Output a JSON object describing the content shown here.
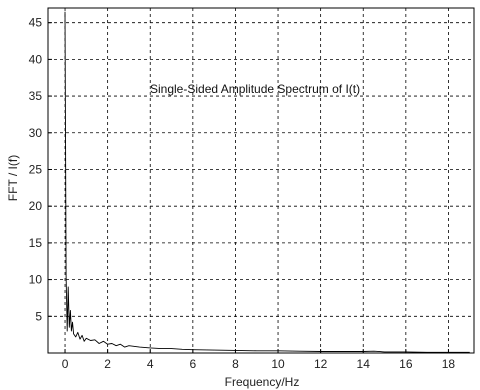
{
  "chart_data": {
    "type": "line",
    "title": "",
    "annotation": "Single-Sided Amplitude Spectrum of I(t)",
    "xlabel": "Frequency/Hz",
    "ylabel": "FFT / I(f)",
    "xlim": [
      -0.8,
      19.2
    ],
    "ylim": [
      0,
      47
    ],
    "xticks": [
      0,
      2,
      4,
      6,
      8,
      10,
      12,
      14,
      16,
      18
    ],
    "yticks": [
      5,
      10,
      15,
      20,
      25,
      30,
      35,
      40,
      45
    ],
    "grid": true,
    "series": [
      {
        "color": "#000000",
        "x": [
          0,
          0.05,
          0.1,
          0.15,
          0.2,
          0.25,
          0.3,
          0.35,
          0.4,
          0.5,
          0.6,
          0.7,
          0.8,
          0.9,
          1.0,
          1.2,
          1.4,
          1.6,
          1.8,
          2.0,
          2.2,
          2.4,
          2.6,
          2.8,
          3.0,
          3.5,
          4.0,
          4.5,
          5.0,
          5.5,
          6.0,
          7.0,
          8.0,
          9.0,
          10.0,
          11.0,
          12.0,
          13.0,
          14.0,
          14.5,
          15.0,
          16.0,
          17.0,
          18.0,
          19.0
        ],
        "y": [
          46.5,
          10.5,
          3.0,
          9.0,
          3.5,
          5.8,
          3.0,
          4.2,
          2.6,
          2.2,
          2.8,
          1.9,
          2.4,
          1.6,
          2.0,
          1.7,
          1.8,
          1.3,
          1.6,
          1.2,
          1.3,
          1.0,
          1.2,
          0.8,
          1.0,
          0.8,
          0.7,
          0.6,
          0.6,
          0.5,
          0.45,
          0.4,
          0.35,
          0.3,
          0.3,
          0.25,
          0.2,
          0.2,
          0.2,
          0.25,
          0.15,
          0.15,
          0.1,
          0.1,
          0.1
        ]
      }
    ]
  }
}
